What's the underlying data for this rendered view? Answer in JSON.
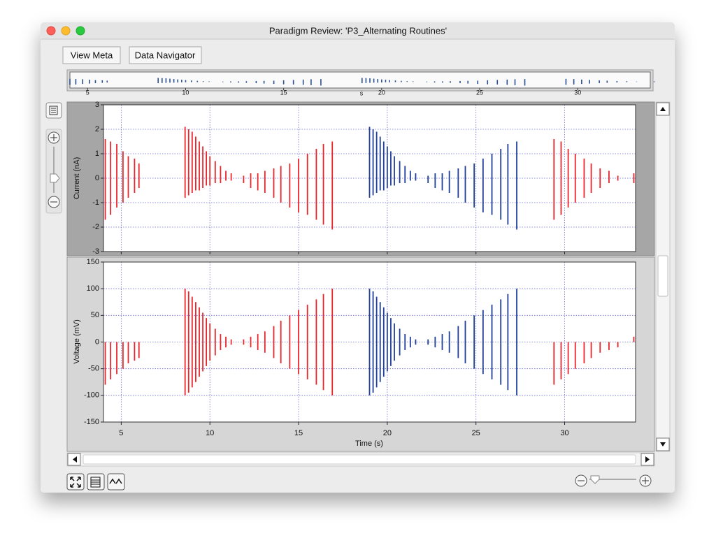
{
  "window": {
    "title": "Paradigm Review: 'P3_Alternating Routines'",
    "buttons": [
      "View Meta",
      "Data Navigator"
    ]
  },
  "overview": {
    "xlim": [
      4.1,
      33.7
    ],
    "xticks": [
      5,
      10,
      15,
      20,
      25,
      30
    ],
    "unit": "s"
  },
  "chart_data": [
    {
      "type": "spikes",
      "ylabel": "Current (nA)",
      "xlim": [
        4,
        34
      ],
      "ylim": [
        -3,
        3
      ],
      "xticks": [
        5,
        10,
        15,
        20,
        25,
        30
      ],
      "yticks": [
        -3,
        -2,
        -1,
        0,
        1,
        2,
        3
      ],
      "grid": true,
      "series": [
        {
          "color": "#e8262b",
          "x": [
            4.1,
            4.4,
            4.75,
            5.1,
            5.4,
            5.75,
            6.0,
            8.6,
            8.8,
            9.0,
            9.2,
            9.4,
            9.6,
            9.8,
            10.0,
            10.3,
            10.6,
            10.9,
            11.2,
            11.9,
            12.3,
            12.7,
            13.1,
            13.6,
            14.0,
            14.5,
            15.0,
            15.5,
            16.0,
            16.4,
            16.9,
            29.4,
            29.8,
            30.2,
            30.6,
            31.1,
            31.5,
            32.0,
            32.5,
            33.0,
            33.9
          ],
          "high": [
            1.6,
            1.5,
            1.4,
            1.1,
            0.9,
            0.8,
            0.6,
            2.1,
            2.0,
            1.9,
            1.7,
            1.5,
            1.3,
            1.1,
            0.9,
            0.7,
            0.5,
            0.3,
            0.2,
            0.1,
            0.2,
            0.2,
            0.3,
            0.4,
            0.5,
            0.6,
            0.8,
            1.0,
            1.2,
            1.4,
            1.5,
            1.6,
            1.5,
            1.2,
            1.0,
            0.8,
            0.6,
            0.4,
            0.3,
            0.1,
            0.2
          ],
          "low": [
            -1.7,
            -1.5,
            -1.2,
            -1.0,
            -0.8,
            -0.6,
            -0.4,
            -0.8,
            -0.7,
            -0.6,
            -0.5,
            -0.5,
            -0.4,
            -0.3,
            -0.3,
            -0.2,
            -0.2,
            -0.1,
            -0.1,
            -0.2,
            -0.4,
            -0.5,
            -0.6,
            -0.8,
            -1.0,
            -1.2,
            -1.4,
            -1.5,
            -1.7,
            -1.9,
            -2.1,
            -1.7,
            -1.5,
            -1.2,
            -1.0,
            -0.8,
            -0.6,
            -0.4,
            -0.2,
            -0.1,
            -0.2
          ]
        },
        {
          "color": "#1f3f9a",
          "x": [
            19.0,
            19.2,
            19.4,
            19.6,
            19.8,
            20.0,
            20.2,
            20.4,
            20.7,
            21.0,
            21.3,
            21.6,
            22.3,
            22.7,
            23.1,
            23.5,
            24.0,
            24.4,
            24.9,
            25.4,
            25.9,
            26.4,
            26.8,
            27.3
          ],
          "high": [
            2.1,
            2.0,
            1.9,
            1.7,
            1.5,
            1.3,
            1.1,
            0.9,
            0.7,
            0.5,
            0.3,
            0.2,
            0.1,
            0.2,
            0.2,
            0.3,
            0.4,
            0.5,
            0.6,
            0.8,
            1.0,
            1.2,
            1.4,
            1.5
          ],
          "low": [
            -0.8,
            -0.7,
            -0.6,
            -0.5,
            -0.5,
            -0.4,
            -0.3,
            -0.3,
            -0.2,
            -0.2,
            -0.1,
            -0.1,
            -0.2,
            -0.4,
            -0.5,
            -0.6,
            -0.8,
            -1.0,
            -1.2,
            -1.4,
            -1.5,
            -1.7,
            -1.9,
            -2.1
          ]
        }
      ]
    },
    {
      "type": "spikes",
      "ylabel": "Voltage (mV)",
      "xlabel": "Time (s)",
      "xlim": [
        4,
        34
      ],
      "ylim": [
        -150,
        150
      ],
      "xticks": [
        5,
        10,
        15,
        20,
        25,
        30
      ],
      "yticks": [
        -150,
        -100,
        -50,
        0,
        50,
        100,
        150
      ],
      "grid": true,
      "series": [
        {
          "color": "#e8262b",
          "x": [
            4.1,
            4.4,
            4.75,
            5.1,
            5.4,
            5.75,
            6.0,
            8.6,
            8.8,
            9.0,
            9.2,
            9.4,
            9.6,
            9.8,
            10.0,
            10.3,
            10.6,
            10.9,
            11.2,
            11.9,
            12.3,
            12.7,
            13.1,
            13.6,
            14.0,
            14.5,
            15.0,
            15.5,
            16.0,
            16.4,
            16.9,
            29.4,
            29.8,
            30.2,
            30.6,
            31.1,
            31.5,
            32.0,
            32.5,
            33.0,
            33.9
          ],
          "high": [
            0,
            0,
            0,
            0,
            0,
            0,
            0,
            100,
            95,
            85,
            75,
            65,
            55,
            45,
            35,
            25,
            15,
            10,
            5,
            5,
            10,
            15,
            20,
            30,
            40,
            50,
            60,
            70,
            80,
            90,
            100,
            0,
            0,
            0,
            0,
            0,
            0,
            0,
            0,
            0,
            10
          ],
          "low": [
            -80,
            -70,
            -60,
            -50,
            -40,
            -35,
            -30,
            -100,
            -95,
            -85,
            -75,
            -65,
            -55,
            -45,
            -35,
            -25,
            -15,
            -10,
            -5,
            -5,
            -10,
            -15,
            -20,
            -30,
            -40,
            -50,
            -60,
            -70,
            -80,
            -90,
            -100,
            -80,
            -70,
            -60,
            -50,
            -40,
            -30,
            -20,
            -15,
            -10,
            0
          ]
        },
        {
          "color": "#1f3f9a",
          "x": [
            19.0,
            19.2,
            19.4,
            19.6,
            19.8,
            20.0,
            20.2,
            20.4,
            20.7,
            21.0,
            21.3,
            21.6,
            22.3,
            22.7,
            23.1,
            23.5,
            24.0,
            24.4,
            24.9,
            25.4,
            25.9,
            26.4,
            26.8,
            27.3
          ],
          "high": [
            100,
            95,
            85,
            75,
            65,
            55,
            45,
            35,
            25,
            15,
            10,
            5,
            5,
            10,
            15,
            20,
            30,
            40,
            50,
            60,
            70,
            80,
            90,
            100
          ],
          "low": [
            -100,
            -95,
            -85,
            -75,
            -65,
            -55,
            -45,
            -35,
            -25,
            -15,
            -10,
            -5,
            -5,
            -10,
            -15,
            -20,
            -30,
            -40,
            -50,
            -60,
            -70,
            -80,
            -90,
            -100
          ]
        }
      ]
    }
  ]
}
